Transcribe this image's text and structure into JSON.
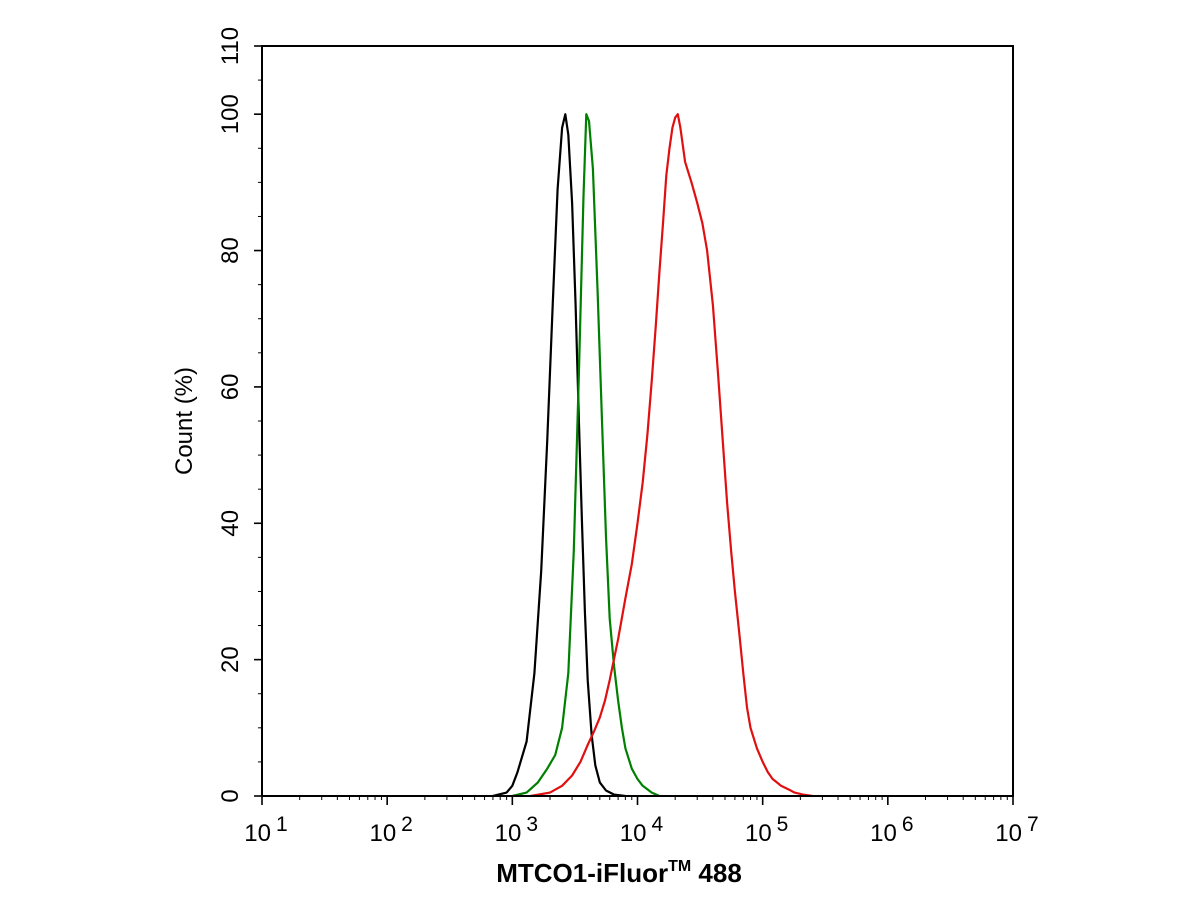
{
  "chart_data": {
    "type": "line",
    "title": "",
    "xlabel": "MTCO1-iFluor",
    "xlabel_sup": "TM",
    "xlabel_suffix": " 488",
    "ylabel": "Count  (%)",
    "x_scale": "log",
    "xlim": [
      10,
      10000000
    ],
    "ylim": [
      0,
      110
    ],
    "x_ticks": [
      {
        "value": 10,
        "base": "10",
        "exp": "1"
      },
      {
        "value": 100,
        "base": "10",
        "exp": "2"
      },
      {
        "value": 1000,
        "base": "10",
        "exp": "3"
      },
      {
        "value": 10000,
        "base": "10",
        "exp": "4"
      },
      {
        "value": 100000,
        "base": "10",
        "exp": "5"
      },
      {
        "value": 1000000,
        "base": "10",
        "exp": "6"
      },
      {
        "value": 10000000,
        "base": "10",
        "exp": "7"
      }
    ],
    "y_ticks": [
      {
        "value": 0,
        "label": "0"
      },
      {
        "value": 20,
        "label": "20"
      },
      {
        "value": 40,
        "label": "40"
      },
      {
        "value": 60,
        "label": "60"
      },
      {
        "value": 80,
        "label": "80"
      },
      {
        "value": 100,
        "label": "100"
      },
      {
        "value": 110,
        "label": "110"
      }
    ],
    "grid": false,
    "series": [
      {
        "color": "#000000",
        "x": [
          700,
          900,
          1000,
          1100,
          1300,
          1500,
          1700,
          1900,
          2100,
          2300,
          2500,
          2650,
          2800,
          3000,
          3200,
          3400,
          3600,
          3800,
          4000,
          4300,
          4600,
          5000,
          5600,
          6500,
          8000
        ],
        "y": [
          0,
          0.5,
          1.5,
          3.5,
          8,
          18,
          33,
          52,
          72,
          89,
          98,
          100,
          97,
          87,
          72,
          55,
          40,
          27,
          17,
          9,
          4.5,
          2,
          0.8,
          0.2,
          0
        ]
      },
      {
        "color": "#008000",
        "x": [
          1000,
          1300,
          1600,
          1900,
          2200,
          2500,
          2800,
          3100,
          3400,
          3700,
          3900,
          4100,
          4400,
          4800,
          5200,
          5600,
          6000,
          6500,
          7000,
          7500,
          8000,
          9000,
          10000,
          11000,
          13000,
          15000
        ],
        "y": [
          0,
          0.5,
          2,
          4,
          6,
          10,
          18,
          36,
          62,
          88,
          100,
          99,
          92,
          74,
          55,
          38,
          26,
          19,
          14,
          10,
          7,
          4,
          2.5,
          1.5,
          0.5,
          0
        ]
      },
      {
        "color": "#e01010",
        "x": [
          1400,
          2000,
          2500,
          3000,
          3500,
          4000,
          4500,
          5000,
          5500,
          6000,
          7000,
          8000,
          9000,
          10000,
          11000,
          12000,
          13000,
          14000,
          15000,
          16000,
          17000,
          18000,
          19000,
          20000,
          21000,
          22000,
          24000,
          27000,
          30000,
          33000,
          36000,
          40000,
          44000,
          48000,
          52000,
          56000,
          60000,
          65000,
          70000,
          75000,
          80000,
          90000,
          100000,
          110000,
          120000,
          130000,
          140000,
          160000,
          180000,
          210000,
          250000
        ],
        "y": [
          0,
          0.5,
          1.5,
          3,
          5,
          7.5,
          9.5,
          11.5,
          14,
          17,
          23,
          29,
          34,
          40,
          46,
          53,
          61,
          69,
          77,
          84,
          91,
          95,
          98,
          99.5,
          100,
          98,
          93,
          90,
          87,
          84,
          80,
          72,
          62,
          52,
          43,
          36,
          30,
          24,
          18,
          13,
          10,
          7,
          5,
          3.5,
          2.5,
          2,
          1.5,
          1,
          0.5,
          0.2,
          0
        ]
      }
    ]
  }
}
